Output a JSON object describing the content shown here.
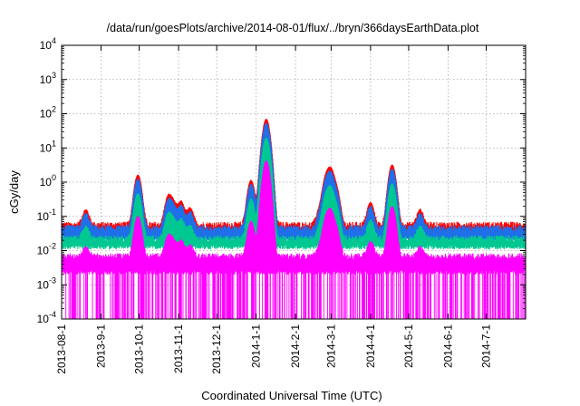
{
  "chart_data": {
    "type": "line",
    "title": "/data/run/goesPlots/archive/2014-08-01/flux/../bryn/366daysEarthData.plot",
    "xlabel": "Coordinated Universal Time (UTC)",
    "ylabel": "cGy/day",
    "yscale": "log",
    "ylim": [
      0.0001,
      10000
    ],
    "xlim": [
      "2013-08-01",
      "2014-08-01"
    ],
    "grid": true,
    "x_tick_labels": [
      "2013-08-1",
      "2013-9-1",
      "2013-10-1",
      "2013-11-1",
      "2013-12-1",
      "2014-1-1",
      "2014-2-1",
      "2014-3-1",
      "2014-4-1",
      "2014-5-1",
      "2014-6-1",
      "2014-7-1"
    ],
    "x_tick_dates": [
      "2013-08-01",
      "2013-09-01",
      "2013-10-01",
      "2013-11-01",
      "2013-12-01",
      "2014-01-01",
      "2014-02-01",
      "2014-03-01",
      "2014-04-01",
      "2014-05-01",
      "2014-06-01",
      "2014-07-01"
    ],
    "y_tick_labels": [
      {
        "base": "10",
        "exp": "-4"
      },
      {
        "base": "10",
        "exp": "-3"
      },
      {
        "base": "10",
        "exp": "-2"
      },
      {
        "base": "10",
        "exp": "-1"
      },
      {
        "base": "10",
        "exp": "0"
      },
      {
        "base": "10",
        "exp": "1"
      },
      {
        "base": "10",
        "exp": "2"
      },
      {
        "base": "10",
        "exp": "3"
      },
      {
        "base": "10",
        "exp": "4"
      }
    ],
    "y_tick_values": [
      0.0001,
      0.001,
      0.01,
      0.1,
      1,
      10,
      100,
      1000,
      10000
    ],
    "series": [
      {
        "color": "#ff0000",
        "baseline": 0.05,
        "floor": 0.028
      },
      {
        "color": "#1e6fe8",
        "baseline": 0.04,
        "floor": 0.02
      },
      {
        "color": "#00c890",
        "baseline": 0.02,
        "floor": 0.012
      },
      {
        "color": "#ff00ff",
        "baseline": 0.006,
        "floor": 0.0022
      }
    ],
    "events": [
      {
        "date": "2013-08-20",
        "peak": 0.1
      },
      {
        "date": "2013-09-30",
        "peak": 1.6
      },
      {
        "date": "2013-10-24",
        "peak": 0.35
      },
      {
        "date": "2013-10-28",
        "peak": 0.2
      },
      {
        "date": "2013-11-03",
        "peak": 0.22
      },
      {
        "date": "2013-11-10",
        "peak": 0.12
      },
      {
        "date": "2013-12-28",
        "peak": 1.1
      },
      {
        "date": "2014-01-07",
        "peak": 1.5
      },
      {
        "date": "2014-01-09",
        "peak": 70
      },
      {
        "date": "2014-02-20",
        "peak": 0.1
      },
      {
        "date": "2014-02-25",
        "peak": 1.3
      },
      {
        "date": "2014-02-28",
        "peak": 0.9
      },
      {
        "date": "2014-03-01",
        "peak": 1.5
      },
      {
        "date": "2014-03-05",
        "peak": 0.6
      },
      {
        "date": "2014-04-01",
        "peak": 0.2
      },
      {
        "date": "2014-04-18",
        "peak": 3.2
      },
      {
        "date": "2014-05-10",
        "peak": 0.1
      }
    ]
  }
}
